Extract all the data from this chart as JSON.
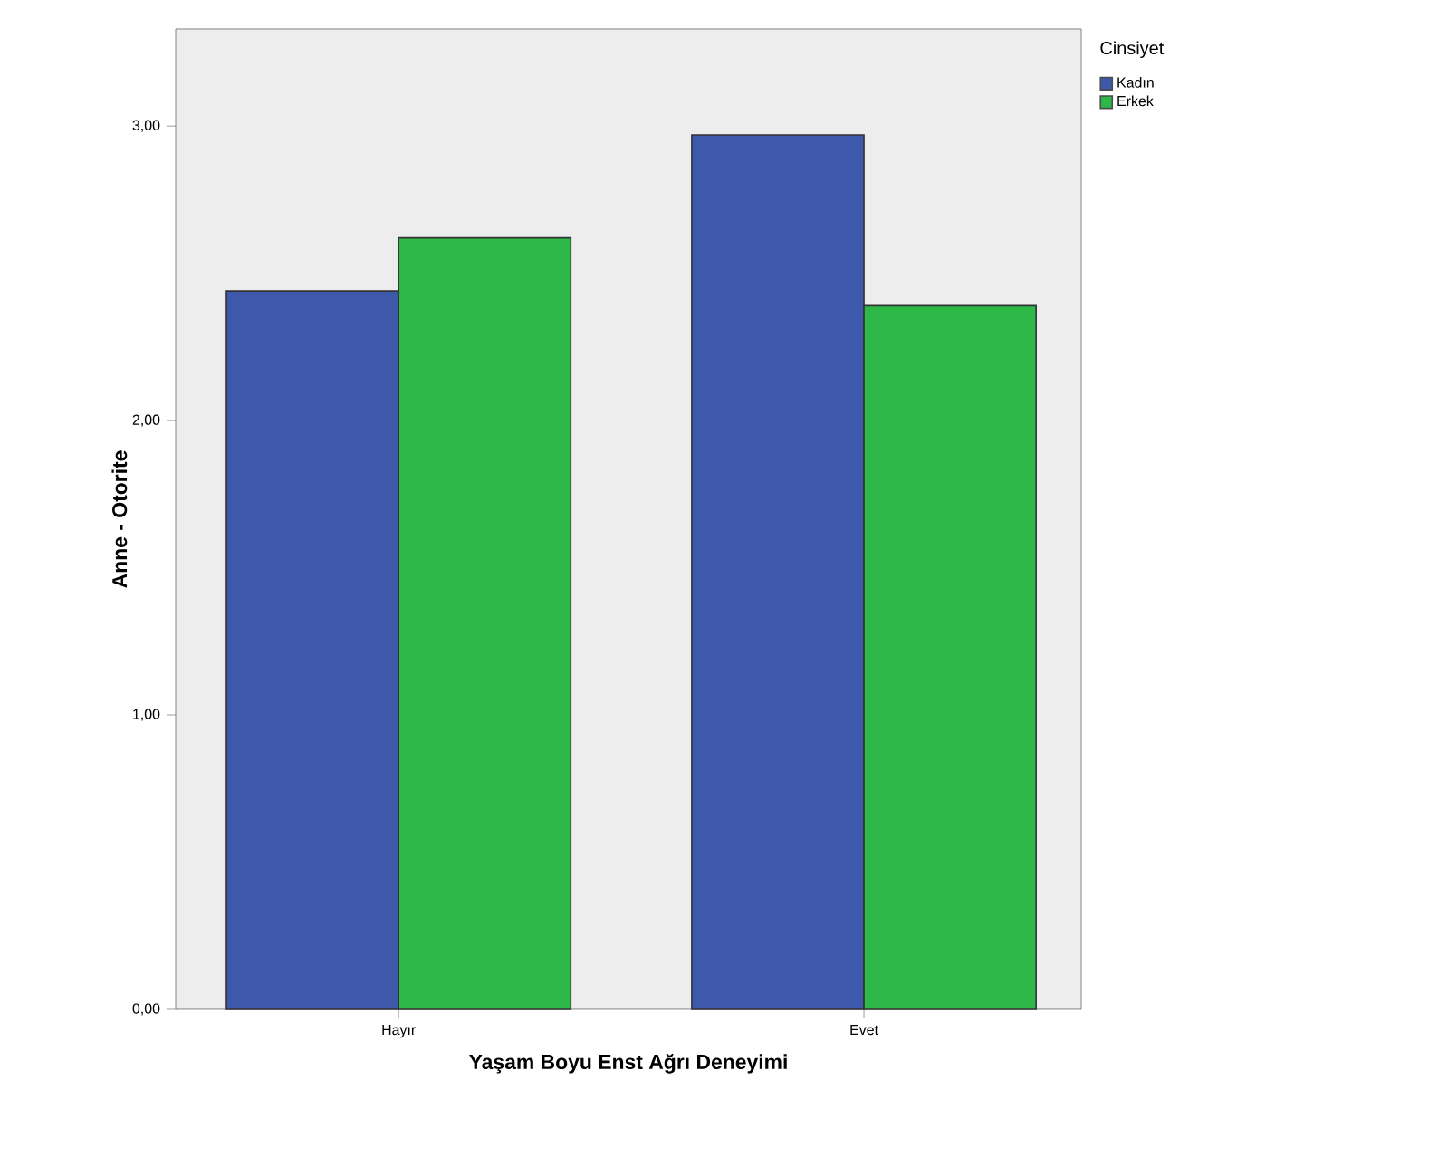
{
  "chart_data": {
    "type": "bar",
    "xlabel": "Yaşam Boyu Enst Ağrı Deneyimi",
    "ylabel": "Anne - Otorite",
    "legend_title": "Cinsiyet",
    "categories": [
      "Hayır",
      "Evet"
    ],
    "series": [
      {
        "name": "Kadın",
        "color": "#3e58ac",
        "values": [
          2.44,
          2.97
        ]
      },
      {
        "name": "Erkek",
        "color": "#2eb848",
        "values": [
          2.62,
          2.39
        ]
      }
    ],
    "ylim": [
      0,
      3.33
    ],
    "yticks": [
      {
        "value": 0,
        "label": "0,00"
      },
      {
        "value": 1,
        "label": "1,00"
      },
      {
        "value": 2,
        "label": "2,00"
      },
      {
        "value": 3,
        "label": "3,00"
      }
    ],
    "grid": false,
    "legend": "right"
  }
}
